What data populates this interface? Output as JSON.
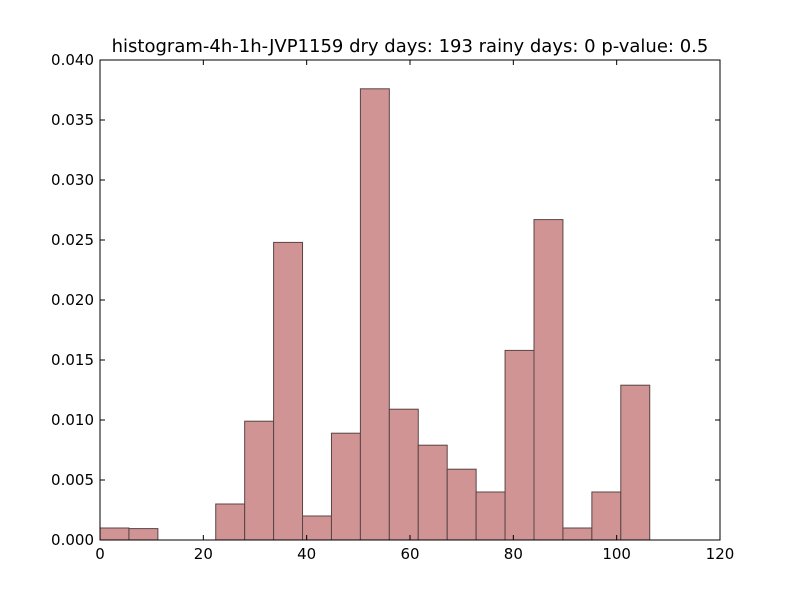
{
  "chart_data": {
    "type": "bar",
    "title": "histogram-4h-1h-JVP1159 dry days: 193 rainy days: 0 p-value: 0.5",
    "xlabel": "",
    "ylabel": "",
    "xlim": [
      0,
      120
    ],
    "ylim": [
      0,
      0.04
    ],
    "x_ticks": [
      "0",
      "20",
      "40",
      "60",
      "80",
      "100",
      "120"
    ],
    "y_ticks": [
      "0.000",
      "0.005",
      "0.010",
      "0.015",
      "0.020",
      "0.025",
      "0.030",
      "0.035",
      "0.040"
    ],
    "bins": [
      {
        "x0": 0.0,
        "x1": 5.6,
        "value": 0.001
      },
      {
        "x0": 5.6,
        "x1": 11.2,
        "value": 0.00095
      },
      {
        "x0": 11.2,
        "x1": 16.8,
        "value": 0.0
      },
      {
        "x0": 16.8,
        "x1": 22.4,
        "value": 0.0
      },
      {
        "x0": 22.4,
        "x1": 28.0,
        "value": 0.003
      },
      {
        "x0": 28.0,
        "x1": 33.6,
        "value": 0.0099
      },
      {
        "x0": 33.6,
        "x1": 39.2,
        "value": 0.0248
      },
      {
        "x0": 39.2,
        "x1": 44.8,
        "value": 0.002
      },
      {
        "x0": 44.8,
        "x1": 50.4,
        "value": 0.0089
      },
      {
        "x0": 50.4,
        "x1": 56.0,
        "value": 0.0376
      },
      {
        "x0": 56.0,
        "x1": 61.6,
        "value": 0.0109
      },
      {
        "x0": 61.6,
        "x1": 67.2,
        "value": 0.0079
      },
      {
        "x0": 67.2,
        "x1": 72.8,
        "value": 0.0059
      },
      {
        "x0": 72.8,
        "x1": 78.4,
        "value": 0.004
      },
      {
        "x0": 78.4,
        "x1": 84.0,
        "value": 0.0158
      },
      {
        "x0": 84.0,
        "x1": 89.6,
        "value": 0.0267
      },
      {
        "x0": 89.6,
        "x1": 95.2,
        "value": 0.001
      },
      {
        "x0": 95.2,
        "x1": 100.8,
        "value": 0.004
      },
      {
        "x0": 100.8,
        "x1": 106.4,
        "value": 0.0129
      }
    ],
    "bar_color": "#d19494",
    "bar_edge_color": "#5a4444",
    "grid": false,
    "legend": "none"
  }
}
